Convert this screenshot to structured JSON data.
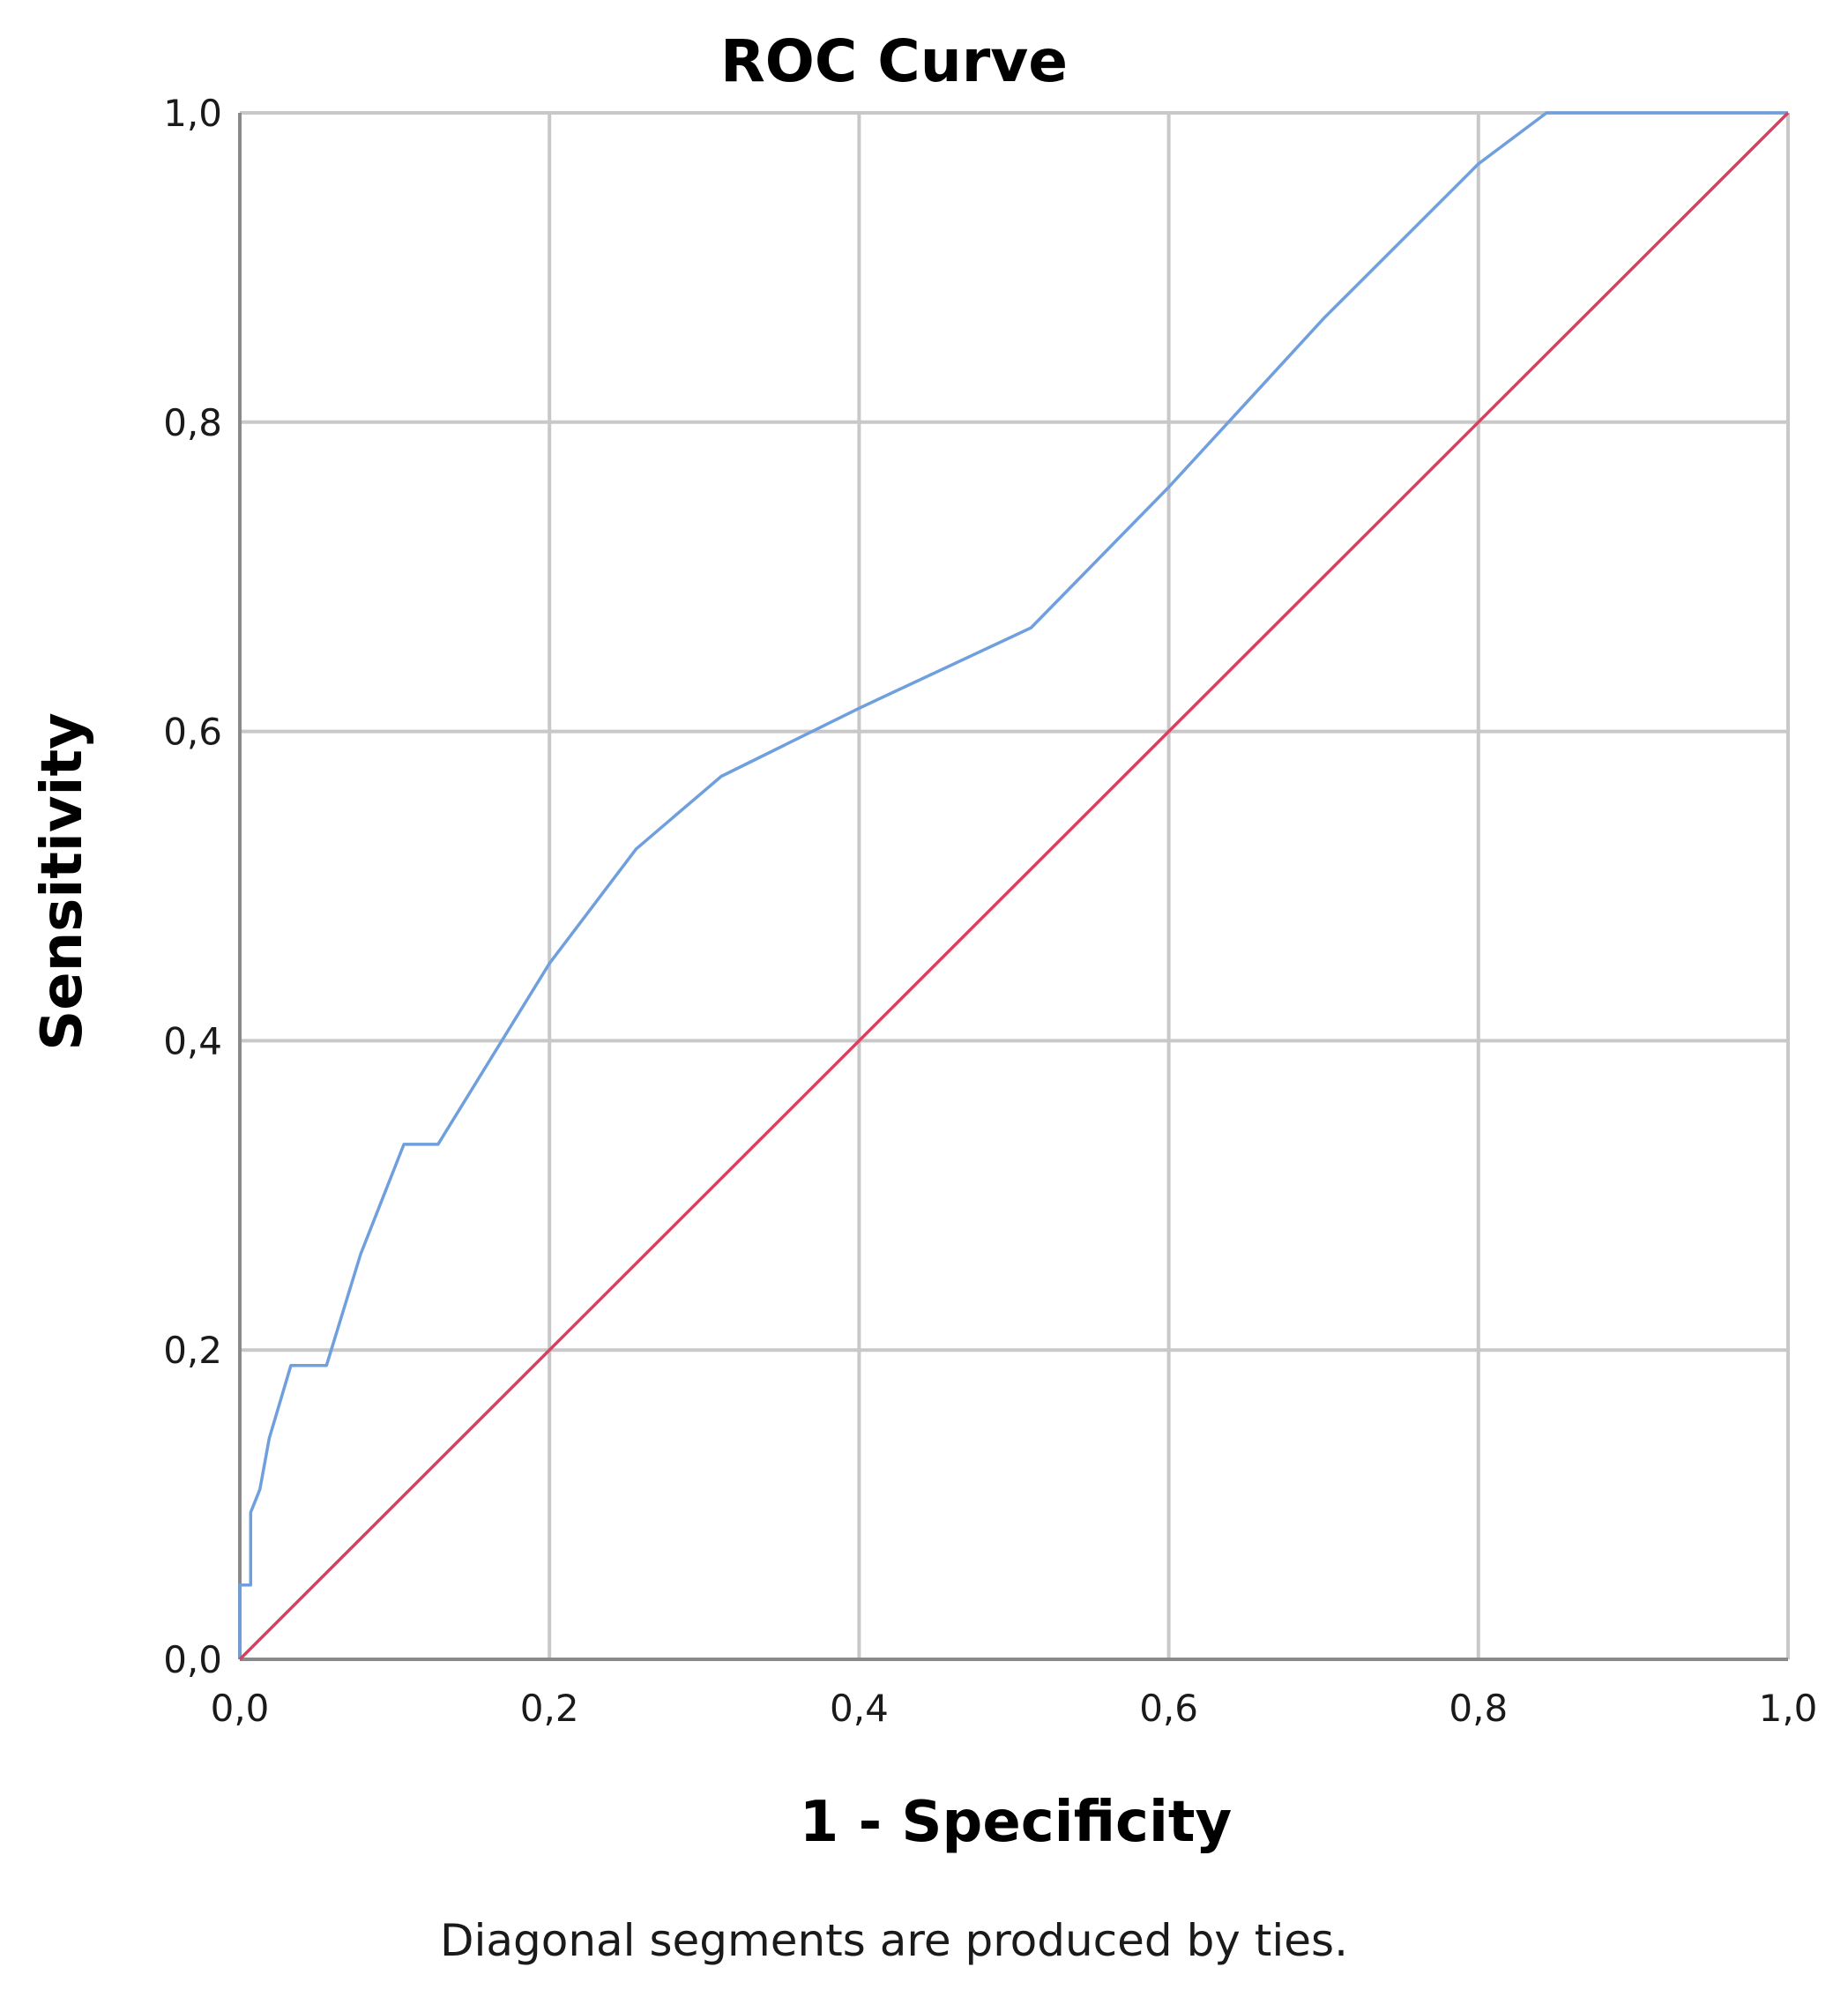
{
  "chart_data": {
    "type": "line",
    "title": "ROC Curve",
    "xlabel": "1 - Specificity",
    "ylabel": "Sensitivity",
    "xlim": [
      0,
      1
    ],
    "ylim": [
      0,
      1
    ],
    "x_ticks": [
      "0,0",
      "0,2",
      "0,4",
      "0,6",
      "0,8",
      "1,0"
    ],
    "y_ticks": [
      "0,0",
      "0,2",
      "0,4",
      "0,6",
      "0,8",
      "1,0"
    ],
    "grid": true,
    "footnote": "Diagonal segments are produced by ties.",
    "series": [
      {
        "color": "#6f9fdc",
        "x": [
          0.0,
          0.0,
          0.007,
          0.007,
          0.013,
          0.019,
          0.033,
          0.056,
          0.078,
          0.106,
          0.128,
          0.2,
          0.256,
          0.311,
          0.4,
          0.511,
          0.6,
          0.7,
          0.8,
          0.844,
          1.0
        ],
        "y": [
          0.0,
          0.048,
          0.048,
          0.095,
          0.11,
          0.143,
          0.19,
          0.19,
          0.262,
          0.333,
          0.333,
          0.45,
          0.524,
          0.571,
          0.615,
          0.667,
          0.758,
          0.867,
          0.967,
          1.0,
          1.0
        ]
      },
      {
        "color": "#d9405f",
        "x": [
          0.0,
          1.0
        ],
        "y": [
          0.0,
          1.0
        ]
      }
    ]
  }
}
